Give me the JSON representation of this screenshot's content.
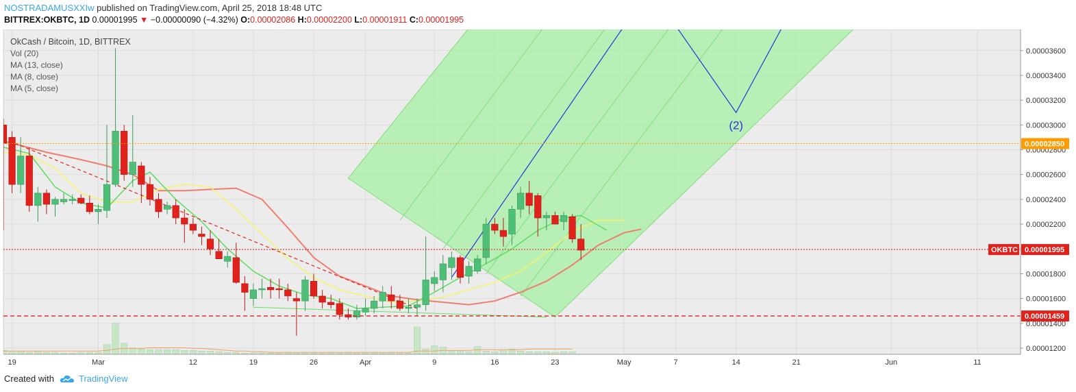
{
  "header": {
    "author": "NOSTRADAMUSXXIw",
    "published_text": "published on TradingView.com, April 25, 2018 18:48 UTC",
    "symbol": "BITTREX:OKBTC, 1D",
    "last": "0.00001995",
    "change_arrow": "▼",
    "change": "−0.00000090 (−4.32%)",
    "o_label": "O:",
    "o_value": "0.00002086",
    "h_label": "H:",
    "h_value": "0.00002200",
    "l_label": "L:",
    "l_value": "0.00001911",
    "c_label": "C:",
    "c_value": "0.00001995"
  },
  "legend": {
    "title": "OkCash / Bitcoin, 1D, BITTREX",
    "items": [
      "Vol (20)",
      "MA (13, close)",
      "MA (8, close)",
      "MA (5, close)"
    ]
  },
  "footer": {
    "created_with": "Created with",
    "brand": "TradingView"
  },
  "colors": {
    "up": "#4fbf78",
    "down": "#e0211c",
    "ma13": "#f07c6e",
    "ma8": "#f6f36a",
    "ma5": "#5ddc5d",
    "channel_fill": "#a7f0a5",
    "wave_line": "#2633d6",
    "price_tag": "#e0211c",
    "level_orange": "#ff9b00",
    "level_red": "#e0211c",
    "volume": "#c7e6c7"
  },
  "chart_data": {
    "type": "candlestick",
    "yaxis": {
      "min": 1.15e-05,
      "max": 3.77e-05,
      "ticks": [
        "0.00001200",
        "0.00001400",
        "0.00001600",
        "0.00001800",
        "0.00002000",
        "0.00002200",
        "0.00002400",
        "0.00002600",
        "0.00002800",
        "0.00003000",
        "0.00003200",
        "0.00003400",
        "0.00003600"
      ]
    },
    "xaxis": {
      "labels": [
        {
          "text": "19",
          "day": 0
        },
        {
          "text": "Mar",
          "day": 10
        },
        {
          "text": "12",
          "day": 21
        },
        {
          "text": "19",
          "day": 28
        },
        {
          "text": "26",
          "day": 35
        },
        {
          "text": "Apr",
          "day": 41
        },
        {
          "text": "9",
          "day": 49
        },
        {
          "text": "16",
          "day": 56
        },
        {
          "text": "23",
          "day": 63
        },
        {
          "text": "May",
          "day": 71
        },
        {
          "text": "7",
          "day": 77
        },
        {
          "text": "14",
          "day": 84
        },
        {
          "text": "21",
          "day": 91
        },
        {
          "text": "Jun",
          "day": 102
        },
        {
          "text": "11",
          "day": 112
        }
      ],
      "day_min": -1,
      "day_max": 117
    },
    "candles": [
      {
        "d": -1,
        "o": 3e-05,
        "h": 3.05e-05,
        "l": 2.15e-05,
        "c": 2.85e-05
      },
      {
        "d": 0,
        "o": 2.9e-05,
        "h": 2.95e-05,
        "l": 2.45e-05,
        "c": 2.52e-05
      },
      {
        "d": 1,
        "o": 2.52e-05,
        "h": 2.9e-05,
        "l": 2.45e-05,
        "c": 2.75e-05
      },
      {
        "d": 2,
        "o": 2.75e-05,
        "h": 2.82e-05,
        "l": 2.3e-05,
        "c": 2.35e-05
      },
      {
        "d": 3,
        "o": 2.35e-05,
        "h": 2.5e-05,
        "l": 2.22e-05,
        "c": 2.45e-05
      },
      {
        "d": 4,
        "o": 2.45e-05,
        "h": 2.48e-05,
        "l": 2.28e-05,
        "c": 2.36e-05
      },
      {
        "d": 5,
        "o": 2.36e-05,
        "h": 2.42e-05,
        "l": 2.26e-05,
        "c": 2.4e-05
      },
      {
        "d": 6,
        "o": 2.38e-05,
        "h": 2.45e-05,
        "l": 2.36e-05,
        "c": 2.4e-05
      },
      {
        "d": 7,
        "o": 2.39e-05,
        "h": 2.44e-05,
        "l": 2.36e-05,
        "c": 2.4e-05
      },
      {
        "d": 8,
        "o": 2.41e-05,
        "h": 2.44e-05,
        "l": 2.36e-05,
        "c": 2.37e-05
      },
      {
        "d": 9,
        "o": 2.37e-05,
        "h": 2.43e-05,
        "l": 2.28e-05,
        "c": 2.3e-05
      },
      {
        "d": 10,
        "o": 2.3e-05,
        "h": 2.36e-05,
        "l": 2.2e-05,
        "c": 2.32e-05
      },
      {
        "d": 11,
        "o": 2.31e-05,
        "h": 3e-05,
        "l": 2.25e-05,
        "c": 2.52e-05
      },
      {
        "d": 12,
        "o": 2.52e-05,
        "h": 3.62e-05,
        "l": 2.5e-05,
        "c": 2.95e-05
      },
      {
        "d": 13,
        "o": 2.95e-05,
        "h": 3e-05,
        "l": 2.55e-05,
        "c": 2.6e-05
      },
      {
        "d": 14,
        "o": 2.6e-05,
        "h": 3.08e-05,
        "l": 2.5e-05,
        "c": 2.7e-05
      },
      {
        "d": 15,
        "o": 2.67e-05,
        "h": 2.7e-05,
        "l": 2.37e-05,
        "c": 2.52e-05
      },
      {
        "d": 16,
        "o": 2.52e-05,
        "h": 2.58e-05,
        "l": 2.35e-05,
        "c": 2.4e-05
      },
      {
        "d": 17,
        "o": 2.4e-05,
        "h": 2.45e-05,
        "l": 2.25e-05,
        "c": 2.3e-05
      },
      {
        "d": 18,
        "o": 2.32e-05,
        "h": 2.38e-05,
        "l": 2.28e-05,
        "c": 2.35e-05
      },
      {
        "d": 19,
        "o": 2.35e-05,
        "h": 2.4e-05,
        "l": 2.2e-05,
        "c": 2.25e-05
      },
      {
        "d": 20,
        "o": 2.25e-05,
        "h": 2.32e-05,
        "l": 2.05e-05,
        "c": 2.2e-05
      },
      {
        "d": 21,
        "o": 2.2e-05,
        "h": 2.25e-05,
        "l": 2.12e-05,
        "c": 2.15e-05
      },
      {
        "d": 22,
        "o": 2.12e-05,
        "h": 2.18e-05,
        "l": 2.03e-05,
        "c": 2.1e-05
      },
      {
        "d": 23,
        "o": 2.08e-05,
        "h": 2.15e-05,
        "l": 1.95e-05,
        "c": 2e-05
      },
      {
        "d": 24,
        "o": 1.98e-05,
        "h": 2.08e-05,
        "l": 1.92e-05,
        "c": 1.92e-05
      },
      {
        "d": 25,
        "o": 1.9e-05,
        "h": 1.98e-05,
        "l": 1.85e-05,
        "c": 1.94e-05
      },
      {
        "d": 26,
        "o": 1.93e-05,
        "h": 2.05e-05,
        "l": 1.72e-05,
        "c": 1.73e-05
      },
      {
        "d": 27,
        "o": 1.72e-05,
        "h": 1.78e-05,
        "l": 1.5e-05,
        "c": 1.65e-05
      },
      {
        "d": 28,
        "o": 1.6e-05,
        "h": 1.72e-05,
        "l": 1.54e-05,
        "c": 1.67e-05
      },
      {
        "d": 29,
        "o": 1.67e-05,
        "h": 1.76e-05,
        "l": 1.6e-05,
        "c": 1.68e-05
      },
      {
        "d": 30,
        "o": 1.69e-05,
        "h": 1.76e-05,
        "l": 1.6e-05,
        "c": 1.67e-05
      },
      {
        "d": 31,
        "o": 1.68e-05,
        "h": 1.76e-05,
        "l": 1.6e-05,
        "c": 1.67e-05
      },
      {
        "d": 32,
        "o": 1.67e-05,
        "h": 1.72e-05,
        "l": 1.58e-05,
        "c": 1.62e-05
      },
      {
        "d": 33,
        "o": 1.6e-05,
        "h": 1.65e-05,
        "l": 1.3e-05,
        "c": 1.58e-05
      },
      {
        "d": 34,
        "o": 1.58e-05,
        "h": 1.78e-05,
        "l": 1.5e-05,
        "c": 1.75e-05
      },
      {
        "d": 35,
        "o": 1.74e-05,
        "h": 1.8e-05,
        "l": 1.6e-05,
        "c": 1.62e-05
      },
      {
        "d": 36,
        "o": 1.62e-05,
        "h": 1.67e-05,
        "l": 1.52e-05,
        "c": 1.57e-05
      },
      {
        "d": 37,
        "o": 1.57e-05,
        "h": 1.63e-05,
        "l": 1.52e-05,
        "c": 1.55e-05
      },
      {
        "d": 38,
        "o": 1.56e-05,
        "h": 1.6e-05,
        "l": 1.43e-05,
        "c": 1.47e-05
      },
      {
        "d": 39,
        "o": 1.47e-05,
        "h": 1.52e-05,
        "l": 1.43e-05,
        "c": 1.45e-05
      },
      {
        "d": 40,
        "o": 1.45e-05,
        "h": 1.55e-05,
        "l": 1.43e-05,
        "c": 1.5e-05
      },
      {
        "d": 41,
        "o": 1.49e-05,
        "h": 1.6e-05,
        "l": 1.46e-05,
        "c": 1.52e-05
      },
      {
        "d": 42,
        "o": 1.52e-05,
        "h": 1.62e-05,
        "l": 1.48e-05,
        "c": 1.58e-05
      },
      {
        "d": 43,
        "o": 1.58e-05,
        "h": 1.7e-05,
        "l": 1.52e-05,
        "c": 1.65e-05
      },
      {
        "d": 44,
        "o": 1.63e-05,
        "h": 1.7e-05,
        "l": 1.52e-05,
        "c": 1.58e-05
      },
      {
        "d": 45,
        "o": 1.58e-05,
        "h": 1.63e-05,
        "l": 1.5e-05,
        "c": 1.52e-05
      },
      {
        "d": 46,
        "o": 1.52e-05,
        "h": 1.6e-05,
        "l": 1.48e-05,
        "c": 1.53e-05
      },
      {
        "d": 47,
        "o": 1.53e-05,
        "h": 1.6e-05,
        "l": 1.46e-05,
        "c": 1.55e-05
      },
      {
        "d": 48,
        "o": 1.55e-05,
        "h": 2.1e-05,
        "l": 1.5e-05,
        "c": 1.75e-05
      },
      {
        "d": 49,
        "o": 1.72e-05,
        "h": 1.82e-05,
        "l": 1.66e-05,
        "c": 1.77e-05
      },
      {
        "d": 50,
        "o": 1.75e-05,
        "h": 1.95e-05,
        "l": 1.65e-05,
        "c": 1.88e-05
      },
      {
        "d": 51,
        "o": 1.85e-05,
        "h": 1.98e-05,
        "l": 1.75e-05,
        "c": 1.93e-05
      },
      {
        "d": 52,
        "o": 1.93e-05,
        "h": 1.95e-05,
        "l": 1.72e-05,
        "c": 1.77e-05
      },
      {
        "d": 53,
        "o": 1.78e-05,
        "h": 1.9e-05,
        "l": 1.72e-05,
        "c": 1.86e-05
      },
      {
        "d": 54,
        "o": 1.82e-05,
        "h": 1.95e-05,
        "l": 1.8e-05,
        "c": 1.92e-05
      },
      {
        "d": 55,
        "o": 1.93e-05,
        "h": 2.25e-05,
        "l": 1.88e-05,
        "c": 2.2e-05
      },
      {
        "d": 56,
        "o": 2.2e-05,
        "h": 2.25e-05,
        "l": 2.12e-05,
        "c": 2.15e-05
      },
      {
        "d": 57,
        "o": 2.15e-05,
        "h": 2.25e-05,
        "l": 2.02e-05,
        "c": 2.1e-05
      },
      {
        "d": 58,
        "o": 2.12e-05,
        "h": 2.35e-05,
        "l": 2.03e-05,
        "c": 2.32e-05
      },
      {
        "d": 59,
        "o": 2.32e-05,
        "h": 2.5e-05,
        "l": 2.25e-05,
        "c": 2.45e-05
      },
      {
        "d": 60,
        "o": 2.45e-05,
        "h": 2.55e-05,
        "l": 2.28e-05,
        "c": 2.35e-05
      },
      {
        "d": 61,
        "o": 2.43e-05,
        "h": 2.45e-05,
        "l": 2.1e-05,
        "c": 2.25e-05
      },
      {
        "d": 62,
        "o": 2.25e-05,
        "h": 2.3e-05,
        "l": 2.15e-05,
        "c": 2.27e-05
      },
      {
        "d": 63,
        "o": 2.27e-05,
        "h": 2.3e-05,
        "l": 2.2e-05,
        "c": 2.2e-05
      },
      {
        "d": 64,
        "o": 2.22e-05,
        "h": 2.3e-05,
        "l": 2.15e-05,
        "c": 2.27e-05
      },
      {
        "d": 65,
        "o": 2.26e-05,
        "h": 2.28e-05,
        "l": 2.05e-05,
        "c": 2.08e-05
      },
      {
        "d": 66,
        "o": 2.08e-05,
        "h": 2.2e-05,
        "l": 1.91e-05,
        "c": 1.99e-05
      }
    ],
    "volume": {
      "max": 1.0,
      "bars": [
        0.06,
        0.05,
        0.05,
        0.03,
        0.05,
        0.03,
        0.03,
        0.02,
        0.02,
        0.03,
        0.03,
        0.03,
        0.15,
        0.48,
        0.17,
        0.1,
        0.08,
        0.07,
        0.07,
        0.07,
        0.07,
        0.06,
        0.06,
        0.05,
        0.05,
        0.04,
        0.03,
        0.03,
        0.02,
        0.02,
        0.02,
        0.02,
        0.02,
        0.02,
        0.02,
        0.02,
        0.02,
        0.02,
        0.02,
        0.02,
        0.02,
        0.02,
        0.02,
        0.02,
        0.02,
        0.02,
        0.02,
        0.02,
        0.42,
        0.08,
        0.13,
        0.11,
        0.06,
        0.06,
        0.04,
        0.12,
        0.05,
        0.04,
        0.07,
        0.08,
        0.05,
        0.04,
        0.04,
        0.04,
        0.03,
        0.04,
        0.04
      ],
      "ma_line": [
        0.05,
        0.05,
        0.05,
        0.05,
        0.05,
        0.05,
        0.05,
        0.05,
        0.05,
        0.05,
        0.05,
        0.05,
        0.06,
        0.08,
        0.09,
        0.09,
        0.09,
        0.1,
        0.1,
        0.1,
        0.1,
        0.1,
        0.09,
        0.09,
        0.08,
        0.07,
        0.06,
        0.05,
        0.05,
        0.04,
        0.04,
        0.03,
        0.03,
        0.03,
        0.03,
        0.03,
        0.03,
        0.03,
        0.03,
        0.03,
        0.03,
        0.03,
        0.03,
        0.03,
        0.03,
        0.03,
        0.03,
        0.03,
        0.05,
        0.05,
        0.05,
        0.06,
        0.06,
        0.06,
        0.06,
        0.07,
        0.07,
        0.07,
        0.07,
        0.07,
        0.07,
        0.08,
        0.08,
        0.08,
        0.08,
        0.08,
        0.08
      ]
    },
    "ma13": [
      {
        "d": -1,
        "v": 2.87e-05
      },
      {
        "d": 4,
        "v": 2.78e-05
      },
      {
        "d": 8,
        "v": 2.72e-05
      },
      {
        "d": 11,
        "v": 2.67e-05
      },
      {
        "d": 14,
        "v": 2.6e-05
      },
      {
        "d": 17,
        "v": 2.47e-05
      },
      {
        "d": 20,
        "v": 2.47e-05
      },
      {
        "d": 23,
        "v": 2.48e-05
      },
      {
        "d": 26,
        "v": 2.49e-05
      },
      {
        "d": 29,
        "v": 2.4e-05
      },
      {
        "d": 32,
        "v": 2.17e-05
      },
      {
        "d": 35,
        "v": 1.93e-05
      },
      {
        "d": 38,
        "v": 1.78e-05
      },
      {
        "d": 41,
        "v": 1.7e-05
      },
      {
        "d": 44,
        "v": 1.62e-05
      },
      {
        "d": 47,
        "v": 1.59e-05
      },
      {
        "d": 50,
        "v": 1.57e-05
      },
      {
        "d": 53,
        "v": 1.55e-05
      },
      {
        "d": 56,
        "v": 1.58e-05
      },
      {
        "d": 59,
        "v": 1.65e-05
      },
      {
        "d": 62,
        "v": 1.74e-05
      },
      {
        "d": 65,
        "v": 1.87e-05
      },
      {
        "d": 68,
        "v": 2.03e-05
      },
      {
        "d": 71,
        "v": 2.13e-05
      },
      {
        "d": 73,
        "v": 2.16e-05
      }
    ],
    "ma8": [
      {
        "d": -1,
        "v": 2.78e-05
      },
      {
        "d": 2,
        "v": 2.76e-05
      },
      {
        "d": 5,
        "v": 2.65e-05
      },
      {
        "d": 8,
        "v": 2.45e-05
      },
      {
        "d": 11,
        "v": 2.38e-05
      },
      {
        "d": 14,
        "v": 2.38e-05
      },
      {
        "d": 17,
        "v": 2.48e-05
      },
      {
        "d": 20,
        "v": 2.52e-05
      },
      {
        "d": 23,
        "v": 2.5e-05
      },
      {
        "d": 26,
        "v": 2.32e-05
      },
      {
        "d": 29,
        "v": 2.12e-05
      },
      {
        "d": 32,
        "v": 1.92e-05
      },
      {
        "d": 35,
        "v": 1.77e-05
      },
      {
        "d": 38,
        "v": 1.67e-05
      },
      {
        "d": 41,
        "v": 1.62e-05
      },
      {
        "d": 44,
        "v": 1.57e-05
      },
      {
        "d": 47,
        "v": 1.58e-05
      },
      {
        "d": 50,
        "v": 1.61e-05
      },
      {
        "d": 53,
        "v": 1.67e-05
      },
      {
        "d": 56,
        "v": 1.73e-05
      },
      {
        "d": 59,
        "v": 1.82e-05
      },
      {
        "d": 62,
        "v": 1.97e-05
      },
      {
        "d": 65,
        "v": 2.14e-05
      },
      {
        "d": 68,
        "v": 2.23e-05
      },
      {
        "d": 71,
        "v": 2.23e-05
      }
    ],
    "ma5": [
      {
        "d": -1,
        "v": 2.82e-05
      },
      {
        "d": 2,
        "v": 2.77e-05
      },
      {
        "d": 5,
        "v": 2.5e-05
      },
      {
        "d": 8,
        "v": 2.37e-05
      },
      {
        "d": 11,
        "v": 2.33e-05
      },
      {
        "d": 14,
        "v": 2.55e-05
      },
      {
        "d": 16,
        "v": 2.62e-05
      },
      {
        "d": 19,
        "v": 2.4e-05
      },
      {
        "d": 22,
        "v": 2.22e-05
      },
      {
        "d": 25,
        "v": 2e-05
      },
      {
        "d": 28,
        "v": 1.82e-05
      },
      {
        "d": 31,
        "v": 1.7e-05
      },
      {
        "d": 34,
        "v": 1.63e-05
      },
      {
        "d": 37,
        "v": 1.6e-05
      },
      {
        "d": 40,
        "v": 1.52e-05
      },
      {
        "d": 43,
        "v": 1.53e-05
      },
      {
        "d": 46,
        "v": 1.54e-05
      },
      {
        "d": 49,
        "v": 1.65e-05
      },
      {
        "d": 52,
        "v": 1.77e-05
      },
      {
        "d": 55,
        "v": 1.88e-05
      },
      {
        "d": 58,
        "v": 2e-05
      },
      {
        "d": 61,
        "v": 2.15e-05
      },
      {
        "d": 64,
        "v": 2.25e-05
      },
      {
        "d": 66,
        "v": 2.27e-05
      },
      {
        "d": 69,
        "v": 2.15e-05
      }
    ],
    "downtrend_line": [
      {
        "d": -1,
        "v": 2.89e-05
      },
      {
        "d": 47,
        "v": 1.52e-05
      }
    ],
    "support_line": [
      {
        "d": 28,
        "v": 1.53e-05
      },
      {
        "d": 62,
        "v": 1.45e-05
      }
    ],
    "channel": [
      {
        "d": 39,
        "v": 2.57e-05
      },
      {
        "d": 74,
        "v": 5.6e-05
      },
      {
        "d": 104,
        "v": 4.2e-05
      },
      {
        "d": 63,
        "v": 1.45e-05
      }
    ],
    "channel_lines": [
      [
        {
          "d": 45,
          "v": 2.23e-05
        },
        {
          "d": 80,
          "v": 5.5e-05
        }
      ],
      [
        {
          "d": 50,
          "v": 2e-05
        },
        {
          "d": 86,
          "v": 5.4e-05
        }
      ],
      [
        {
          "d": 55,
          "v": 1.8e-05
        },
        {
          "d": 92,
          "v": 5.25e-05
        }
      ],
      [
        {
          "d": 59,
          "v": 1.62e-05
        },
        {
          "d": 98,
          "v": 5.2e-05
        }
      ]
    ],
    "wave_lines": [
      [
        {
          "d": 51,
          "v": 1.77e-05
        },
        {
          "d": 73,
          "v": 4e-05
        }
      ],
      [
        {
          "d": 77,
          "v": 3.8e-05
        },
        {
          "d": 84,
          "v": 3.1e-05
        },
        {
          "d": 91,
          "v": 4e-05
        }
      ]
    ],
    "wave_label": {
      "text": "(2)",
      "d": 84,
      "v": 3e-05
    },
    "levels": [
      {
        "value": 2.85e-05,
        "label": "0.00002850",
        "style": "dotted",
        "color_key": "level_orange"
      },
      {
        "value": 1.995e-05,
        "label": "0.00001995",
        "style": "dotted",
        "color_key": "level_red",
        "tag": "OKBTC"
      },
      {
        "value": 1.459e-05,
        "label": "0.00001459",
        "style": "dashed",
        "color_key": "level_red"
      }
    ]
  }
}
